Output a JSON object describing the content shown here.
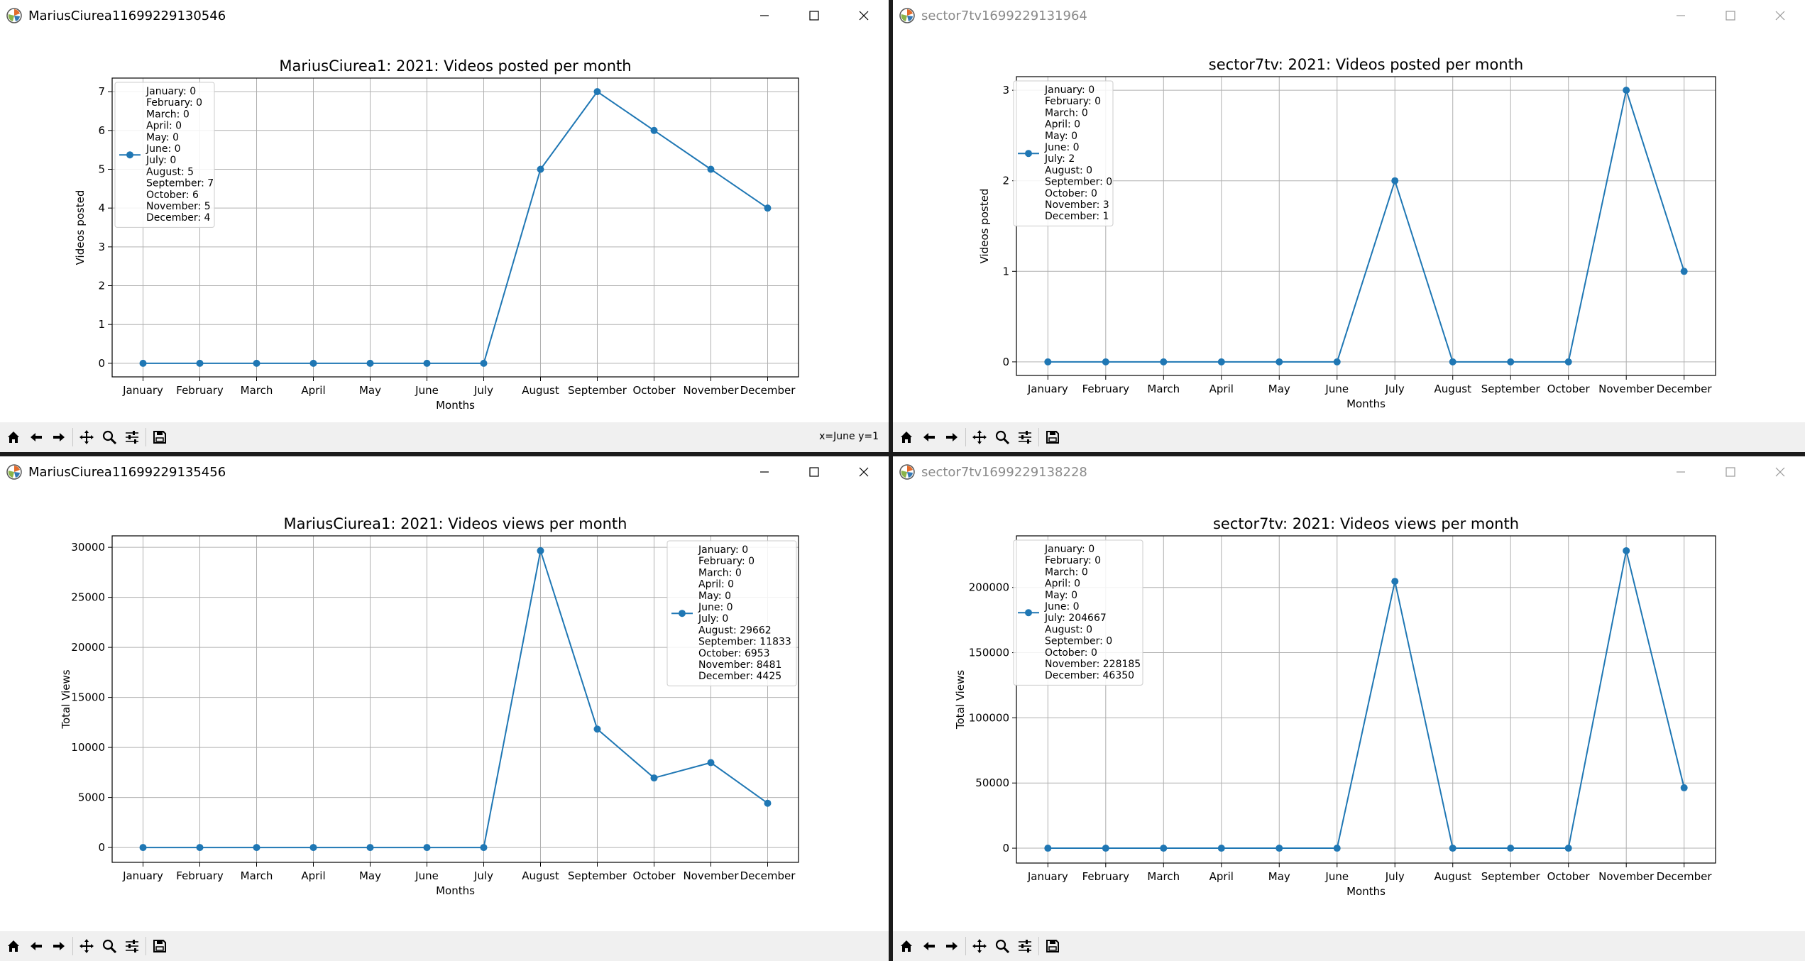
{
  "windows": [
    {
      "title": "MariusCiurea11699229130546",
      "active": true,
      "coords": "x=June y=1",
      "chart_data": {
        "type": "line",
        "title": "MariusCiurea1: 2021: Videos posted per month",
        "xlabel": "Months",
        "ylabel": "Videos posted",
        "categories": [
          "January",
          "February",
          "March",
          "April",
          "May",
          "June",
          "July",
          "August",
          "September",
          "October",
          "November",
          "December"
        ],
        "values": [
          0,
          0,
          0,
          0,
          0,
          0,
          0,
          5,
          7,
          6,
          5,
          4
        ],
        "ylim": [
          -0.35,
          7.35
        ],
        "yticks": [
          0,
          1,
          2,
          3,
          4,
          5,
          6,
          7
        ],
        "grid": true,
        "legend_position": "upper-left",
        "legend_lines": [
          "January: 0",
          "February: 0",
          "March: 0",
          "April: 0",
          "May: 0",
          "June: 0",
          "July: 0",
          "August: 5",
          "September: 7",
          "October: 6",
          "November: 5",
          "December: 4"
        ]
      }
    },
    {
      "title": "sector7tv1699229131964",
      "active": false,
      "coords": "",
      "chart_data": {
        "type": "line",
        "title": "sector7tv: 2021: Videos posted per month",
        "xlabel": "Months",
        "ylabel": "Videos posted",
        "categories": [
          "January",
          "February",
          "March",
          "April",
          "May",
          "June",
          "July",
          "August",
          "September",
          "October",
          "November",
          "December"
        ],
        "values": [
          0,
          0,
          0,
          0,
          0,
          0,
          2,
          0,
          0,
          0,
          3,
          1
        ],
        "ylim": [
          -0.15,
          3.15
        ],
        "yticks": [
          0,
          1,
          2,
          3
        ],
        "grid": true,
        "legend_position": "upper-left",
        "legend_lines": [
          "January: 0",
          "February: 0",
          "March: 0",
          "April: 0",
          "May: 0",
          "June: 0",
          "July: 2",
          "August: 0",
          "September: 0",
          "October: 0",
          "November: 3",
          "December: 1"
        ]
      }
    },
    {
      "title": "MariusCiurea11699229135456",
      "active": true,
      "coords": "",
      "chart_data": {
        "type": "line",
        "title": "MariusCiurea1: 2021: Videos views per month",
        "xlabel": "Months",
        "ylabel": "Total Views",
        "categories": [
          "January",
          "February",
          "March",
          "April",
          "May",
          "June",
          "July",
          "August",
          "September",
          "October",
          "November",
          "December"
        ],
        "values": [
          0,
          0,
          0,
          0,
          0,
          0,
          0,
          29662,
          11833,
          6953,
          8481,
          4425
        ],
        "ylim": [
          -1483,
          31145
        ],
        "yticks": [
          0,
          5000,
          10000,
          15000,
          20000,
          25000,
          30000
        ],
        "grid": true,
        "legend_position": "upper-right",
        "legend_lines": [
          "January: 0",
          "February: 0",
          "March: 0",
          "April: 0",
          "May: 0",
          "June: 0",
          "July: 0",
          "August: 29662",
          "September: 11833",
          "October: 6953",
          "November: 8481",
          "December: 4425"
        ]
      }
    },
    {
      "title": "sector7tv1699229138228",
      "active": false,
      "coords": "",
      "chart_data": {
        "type": "line",
        "title": "sector7tv: 2021: Videos views per month",
        "xlabel": "Months",
        "ylabel": "Total Views",
        "categories": [
          "January",
          "February",
          "March",
          "April",
          "May",
          "June",
          "July",
          "August",
          "September",
          "October",
          "November",
          "December"
        ],
        "values": [
          0,
          0,
          0,
          0,
          0,
          0,
          204667,
          0,
          0,
          0,
          228185,
          46350
        ],
        "ylim": [
          -11409,
          239594
        ],
        "yticks": [
          0,
          50000,
          100000,
          150000,
          200000
        ],
        "grid": true,
        "legend_position": "upper-left",
        "legend_lines": [
          "January: 0",
          "February: 0",
          "March: 0",
          "April: 0",
          "May: 0",
          "June: 0",
          "July: 204667",
          "August: 0",
          "September: 0",
          "October: 0",
          "November: 228185",
          "December: 46350"
        ]
      }
    }
  ],
  "toolbar": {
    "buttons": [
      "home-icon",
      "back-icon",
      "forward-icon",
      "pan-icon",
      "zoom-icon",
      "configure-icon",
      "save-icon"
    ]
  },
  "colors": {
    "line": "#1f77b4",
    "grid": "#b0b0b0",
    "toolbar_bg": "#f0f0f0"
  }
}
